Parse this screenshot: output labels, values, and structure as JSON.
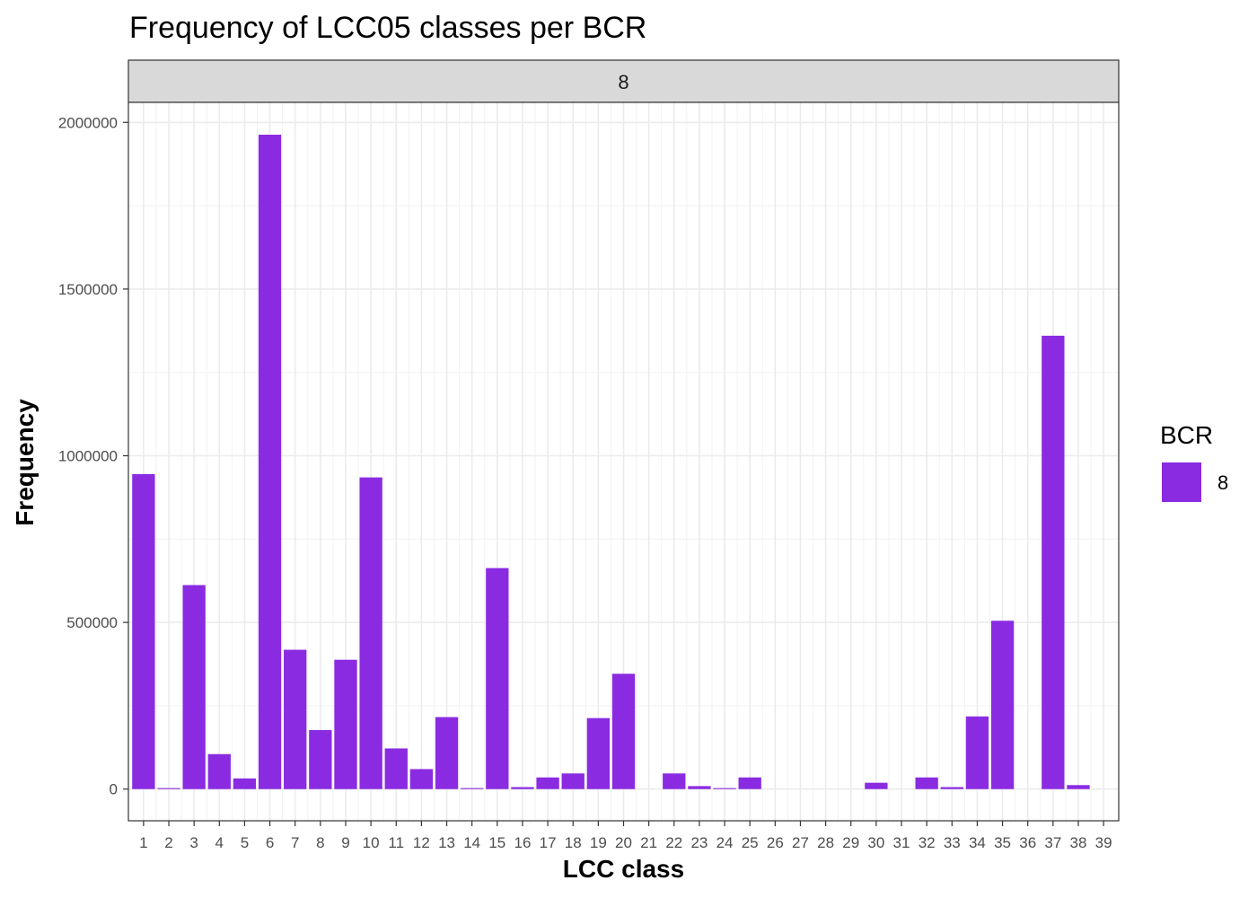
{
  "chart_data": {
    "type": "bar",
    "title": "Frequency of LCC05 classes per BCR",
    "facet_label": "8",
    "xlabel": "LCC class",
    "ylabel": "Frequency",
    "categories": [
      "1",
      "2",
      "3",
      "4",
      "5",
      "6",
      "7",
      "8",
      "9",
      "10",
      "11",
      "12",
      "13",
      "14",
      "15",
      "16",
      "17",
      "18",
      "19",
      "20",
      "21",
      "22",
      "23",
      "24",
      "25",
      "26",
      "27",
      "28",
      "29",
      "30",
      "31",
      "32",
      "33",
      "34",
      "35",
      "36",
      "37",
      "38",
      "39"
    ],
    "series": [
      {
        "name": "8",
        "color": "#8A2BE2",
        "values": [
          945000,
          3000,
          612000,
          105000,
          32000,
          1963000,
          418000,
          177000,
          388000,
          935000,
          122000,
          60000,
          216000,
          3000,
          663000,
          6000,
          35000,
          47000,
          213000,
          346000,
          0,
          47000,
          9000,
          3000,
          35000,
          0,
          0,
          0,
          0,
          19000,
          0,
          35000,
          6000,
          218000,
          505000,
          0,
          1360000,
          12000,
          0
        ]
      }
    ],
    "ylim": [
      -95000,
      2060000
    ],
    "yticks": [
      0,
      500000,
      1000000,
      1500000,
      2000000
    ],
    "ytick_labels": [
      "0",
      "500000",
      "1000000",
      "1500000",
      "2000000"
    ],
    "grid": true,
    "legend": {
      "title": "BCR",
      "placement": "right"
    }
  }
}
